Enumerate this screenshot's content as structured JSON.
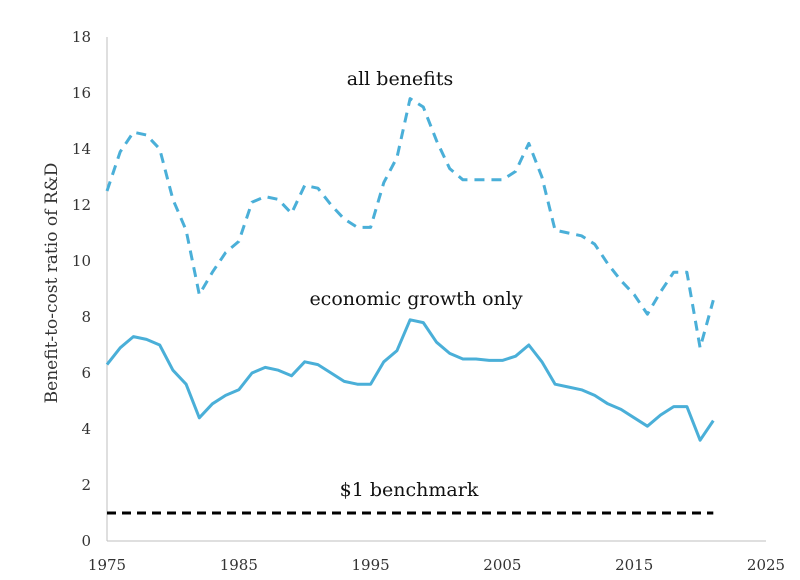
{
  "chart_data": {
    "type": "line",
    "title": "",
    "xlabel": "",
    "ylabel": "Benefit-to-cost ratio of R&D",
    "xlim": [
      1975,
      2025
    ],
    "ylim": [
      0,
      18
    ],
    "xticks": [
      "1975",
      "1985",
      "1995",
      "2005",
      "2015",
      "2025"
    ],
    "yticks": [
      "0",
      "2",
      "4",
      "6",
      "8",
      "10",
      "12",
      "14",
      "16",
      "18"
    ],
    "grid": false,
    "legend": "none",
    "x": [
      1975,
      1976,
      1977,
      1978,
      1979,
      1980,
      1981,
      1982,
      1983,
      1984,
      1985,
      1986,
      1987,
      1988,
      1989,
      1990,
      1991,
      1992,
      1993,
      1994,
      1995,
      1996,
      1997,
      1998,
      1999,
      2000,
      2001,
      2002,
      2003,
      2004,
      2005,
      2006,
      2007,
      2008,
      2009,
      2010,
      2011,
      2012,
      2013,
      2014,
      2015,
      2016,
      2017,
      2018,
      2019,
      2020,
      2021
    ],
    "series": [
      {
        "label": "all benefits",
        "color": "#4aafd8",
        "style": "dashed",
        "values": [
          12.5,
          13.9,
          14.6,
          14.5,
          14.0,
          12.2,
          11.1,
          8.8,
          9.6,
          10.3,
          10.7,
          12.1,
          12.3,
          12.2,
          11.7,
          12.7,
          12.6,
          12.0,
          11.5,
          11.2,
          11.2,
          12.8,
          13.7,
          15.8,
          15.5,
          14.3,
          13.3,
          12.9,
          12.9,
          12.9,
          12.9,
          13.2,
          14.2,
          13.0,
          11.1,
          11.0,
          10.9,
          10.6,
          9.9,
          9.3,
          8.8,
          8.1,
          8.9,
          9.6,
          9.6,
          6.9,
          8.6
        ]
      },
      {
        "label": "economic growth only",
        "color": "#4aafd8",
        "style": "solid",
        "values": [
          6.3,
          6.9,
          7.3,
          7.2,
          7.0,
          6.1,
          5.6,
          4.4,
          4.9,
          5.2,
          5.4,
          6.0,
          6.2,
          6.1,
          5.9,
          6.4,
          6.3,
          6.0,
          5.7,
          5.6,
          5.6,
          6.4,
          6.8,
          7.9,
          7.8,
          7.1,
          6.7,
          6.5,
          6.5,
          6.45,
          6.45,
          6.6,
          7.0,
          6.4,
          5.6,
          5.5,
          5.4,
          5.2,
          4.9,
          4.7,
          4.4,
          4.1,
          4.5,
          4.8,
          4.8,
          3.6,
          4.3
        ]
      },
      {
        "label": "$1 benchmark",
        "color": "#000000",
        "style": "dashed",
        "values": [
          1,
          1,
          1,
          1,
          1,
          1,
          1,
          1,
          1,
          1,
          1,
          1,
          1,
          1,
          1,
          1,
          1,
          1,
          1,
          1,
          1,
          1,
          1,
          1,
          1,
          1,
          1,
          1,
          1,
          1,
          1,
          1,
          1,
          1,
          1,
          1,
          1,
          1,
          1,
          1,
          1,
          1,
          1,
          1,
          1,
          1,
          1
        ]
      }
    ],
    "annotations": [
      "all benefits",
      "economic growth only",
      "$1 benchmark"
    ]
  }
}
